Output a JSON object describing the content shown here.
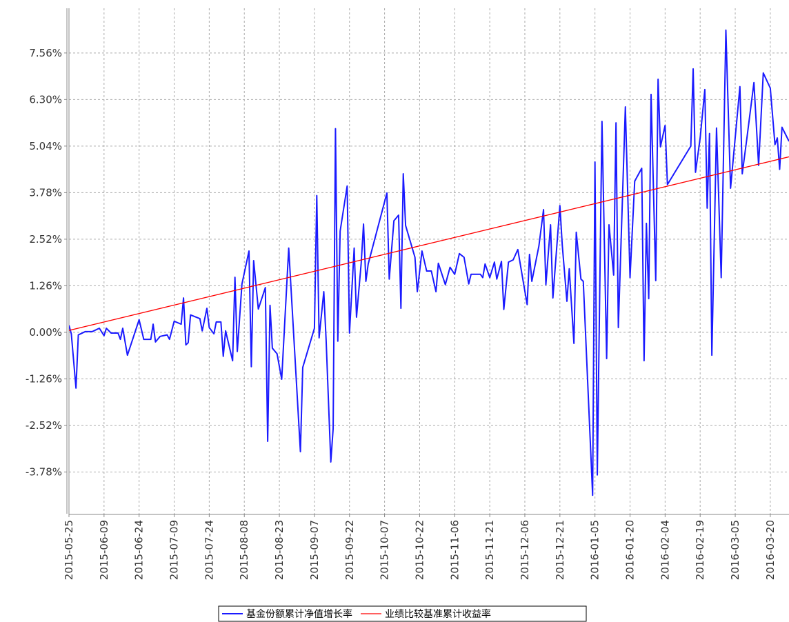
{
  "chart_data": {
    "type": "line",
    "xlim": [
      "2015-05-25",
      "2016-03-28"
    ],
    "xticks": [
      "2015-05-25",
      "2015-06-09",
      "2015-06-24",
      "2015-07-09",
      "2015-07-24",
      "2015-08-08",
      "2015-08-23",
      "2015-09-07",
      "2015-09-22",
      "2015-10-07",
      "2015-10-22",
      "2015-11-06",
      "2015-11-21",
      "2015-12-06",
      "2015-12-21",
      "2016-01-05",
      "2016-01-20",
      "2016-02-04",
      "2016-02-19",
      "2016-03-05",
      "2016-03-20"
    ],
    "ylim": [
      -4.91,
      8.77
    ],
    "yticks": [
      {
        "value": -3.78,
        "label": "-3.78%"
      },
      {
        "value": -2.52,
        "label": "-2.52%"
      },
      {
        "value": -1.26,
        "label": "-1.26%"
      },
      {
        "value": 0,
        "label": "0.00%"
      },
      {
        "value": 1.26,
        "label": "1.26%"
      },
      {
        "value": 2.52,
        "label": "2.52%"
      },
      {
        "value": 3.78,
        "label": "3.78%"
      },
      {
        "value": 5.04,
        "label": "5.04%"
      },
      {
        "value": 6.3,
        "label": "6.30%"
      },
      {
        "value": 7.56,
        "label": "7.56%"
      }
    ],
    "grid": true,
    "series": [
      {
        "name": "基金份额累计净值增长率",
        "color": "#1a1aff",
        "x": [
          "2015-05-25",
          "2015-05-26",
          "2015-05-28",
          "2015-05-29",
          "2015-06-01",
          "2015-06-04",
          "2015-06-07",
          "2015-06-09",
          "2015-06-10",
          "2015-06-12",
          "2015-06-15",
          "2015-06-16",
          "2015-06-17",
          "2015-06-19",
          "2015-06-24",
          "2015-06-26",
          "2015-06-29",
          "2015-06-30",
          "2015-07-01",
          "2015-07-03",
          "2015-07-06",
          "2015-07-07",
          "2015-07-09",
          "2015-07-12",
          "2015-07-13",
          "2015-07-14",
          "2015-07-15",
          "2015-07-16",
          "2015-07-20",
          "2015-07-21",
          "2015-07-23",
          "2015-07-24",
          "2015-07-26",
          "2015-07-27",
          "2015-07-29",
          "2015-07-30",
          "2015-07-31",
          "2015-08-03",
          "2015-08-04",
          "2015-08-05",
          "2015-08-07",
          "2015-08-10",
          "2015-08-11",
          "2015-08-12",
          "2015-08-14",
          "2015-08-17",
          "2015-08-18",
          "2015-08-19",
          "2015-08-20",
          "2015-08-22",
          "2015-08-24",
          "2015-08-27",
          "2015-09-01",
          "2015-09-02",
          "2015-09-07",
          "2015-09-08",
          "2015-09-09",
          "2015-09-11",
          "2015-09-12",
          "2015-09-14",
          "2015-09-15",
          "2015-09-16",
          "2015-09-17",
          "2015-09-18",
          "2015-09-21",
          "2015-09-22",
          "2015-09-24",
          "2015-09-25",
          "2015-09-27",
          "2015-09-28",
          "2015-09-29",
          "2015-09-30",
          "2015-10-08",
          "2015-10-09",
          "2015-10-11",
          "2015-10-13",
          "2015-10-14",
          "2015-10-15",
          "2015-10-16",
          "2015-10-20",
          "2015-10-21",
          "2015-10-23",
          "2015-10-25",
          "2015-10-27",
          "2015-10-29",
          "2015-10-30",
          "2015-11-02",
          "2015-11-04",
          "2015-11-06",
          "2015-11-08",
          "2015-11-10",
          "2015-11-12",
          "2015-11-13",
          "2015-11-17",
          "2015-11-18",
          "2015-11-19",
          "2015-11-21",
          "2015-11-23",
          "2015-11-24",
          "2015-11-26",
          "2015-11-27",
          "2015-11-29",
          "2015-12-01",
          "2015-12-03",
          "2015-12-05",
          "2015-12-07",
          "2015-12-08",
          "2015-12-09",
          "2015-12-12",
          "2015-12-14",
          "2015-12-15",
          "2015-12-17",
          "2015-12-18",
          "2015-12-21",
          "2015-12-22",
          "2015-12-24",
          "2015-12-25",
          "2015-12-27",
          "2015-12-28",
          "2015-12-30",
          "2015-12-31",
          "2016-01-04",
          "2016-01-05",
          "2016-01-06",
          "2016-01-08",
          "2016-01-10",
          "2016-01-11",
          "2016-01-13",
          "2016-01-14",
          "2016-01-15",
          "2016-01-18",
          "2016-01-20",
          "2016-01-22",
          "2016-01-25",
          "2016-01-26",
          "2016-01-27",
          "2016-01-28",
          "2016-01-29",
          "2016-01-31",
          "2016-02-01",
          "2016-02-02",
          "2016-02-04",
          "2016-02-05",
          "2016-02-15",
          "2016-02-16",
          "2016-02-17",
          "2016-02-19",
          "2016-02-21",
          "2016-02-22",
          "2016-02-23",
          "2016-02-24",
          "2016-02-26",
          "2016-02-28",
          "2016-03-01",
          "2016-03-03",
          "2016-03-07",
          "2016-03-08",
          "2016-03-10",
          "2016-03-13",
          "2016-03-15",
          "2016-03-17",
          "2016-03-20",
          "2016-03-22",
          "2016-03-23",
          "2016-03-24",
          "2016-03-25",
          "2016-03-28"
        ],
        "values": [
          0.19,
          -0.04,
          -1.51,
          -0.07,
          0.02,
          0.02,
          0.11,
          -0.09,
          0.11,
          -0.02,
          -0.02,
          -0.19,
          0.11,
          -0.62,
          0.34,
          -0.19,
          -0.19,
          0.22,
          -0.26,
          -0.11,
          -0.07,
          -0.19,
          0.3,
          0.22,
          0.93,
          -0.34,
          -0.28,
          0.47,
          0.37,
          0.04,
          0.65,
          0.13,
          -0.04,
          0.28,
          0.28,
          -0.65,
          0.04,
          -0.77,
          1.49,
          -0.52,
          1.31,
          2.2,
          -0.93,
          1.94,
          0.63,
          1.21,
          -2.95,
          0.73,
          -0.43,
          -0.58,
          -1.27,
          2.28,
          -3.23,
          -0.95,
          0.11,
          3.7,
          -0.15,
          1.1,
          -0.21,
          -3.51,
          -2.61,
          5.51,
          -0.24,
          2.74,
          3.96,
          -0.02,
          2.28,
          0.41,
          1.87,
          2.93,
          1.38,
          1.85,
          3.77,
          1.44,
          3.02,
          3.17,
          0.65,
          4.29,
          2.89,
          2.03,
          1.1,
          2.2,
          1.66,
          1.66,
          1.1,
          1.87,
          1.29,
          1.76,
          1.57,
          2.13,
          2.03,
          1.31,
          1.57,
          1.57,
          1.48,
          1.85,
          1.48,
          1.9,
          1.44,
          1.92,
          0.62,
          1.9,
          1.96,
          2.24,
          1.49,
          0.75,
          2.11,
          1.38,
          2.33,
          3.32,
          1.29,
          2.91,
          0.93,
          3.43,
          2.37,
          0.84,
          1.72,
          -0.3,
          2.71,
          1.44,
          1.38,
          -4.41,
          4.61,
          -3.86,
          5.71,
          -0.71,
          2.91,
          1.55,
          5.67,
          0.13,
          6.1,
          1.48,
          4.09,
          4.44,
          -0.77,
          2.95,
          0.91,
          6.44,
          1.4,
          6.85,
          5.02,
          5.6,
          4.0,
          5.04,
          7.13,
          4.33,
          5.26,
          6.57,
          3.36,
          5.38,
          -0.62,
          5.53,
          1.48,
          8.18,
          3.9,
          6.65,
          4.29,
          5.26,
          6.76,
          4.52,
          7.02,
          6.61,
          5.08,
          5.26,
          4.41,
          5.55,
          5.17
        ]
      },
      {
        "name": "业绩比较基准累计收益率",
        "color": "#ff0000",
        "x": [
          "2015-05-25",
          "2016-03-28"
        ],
        "values": [
          0.05,
          4.75
        ]
      }
    ]
  }
}
